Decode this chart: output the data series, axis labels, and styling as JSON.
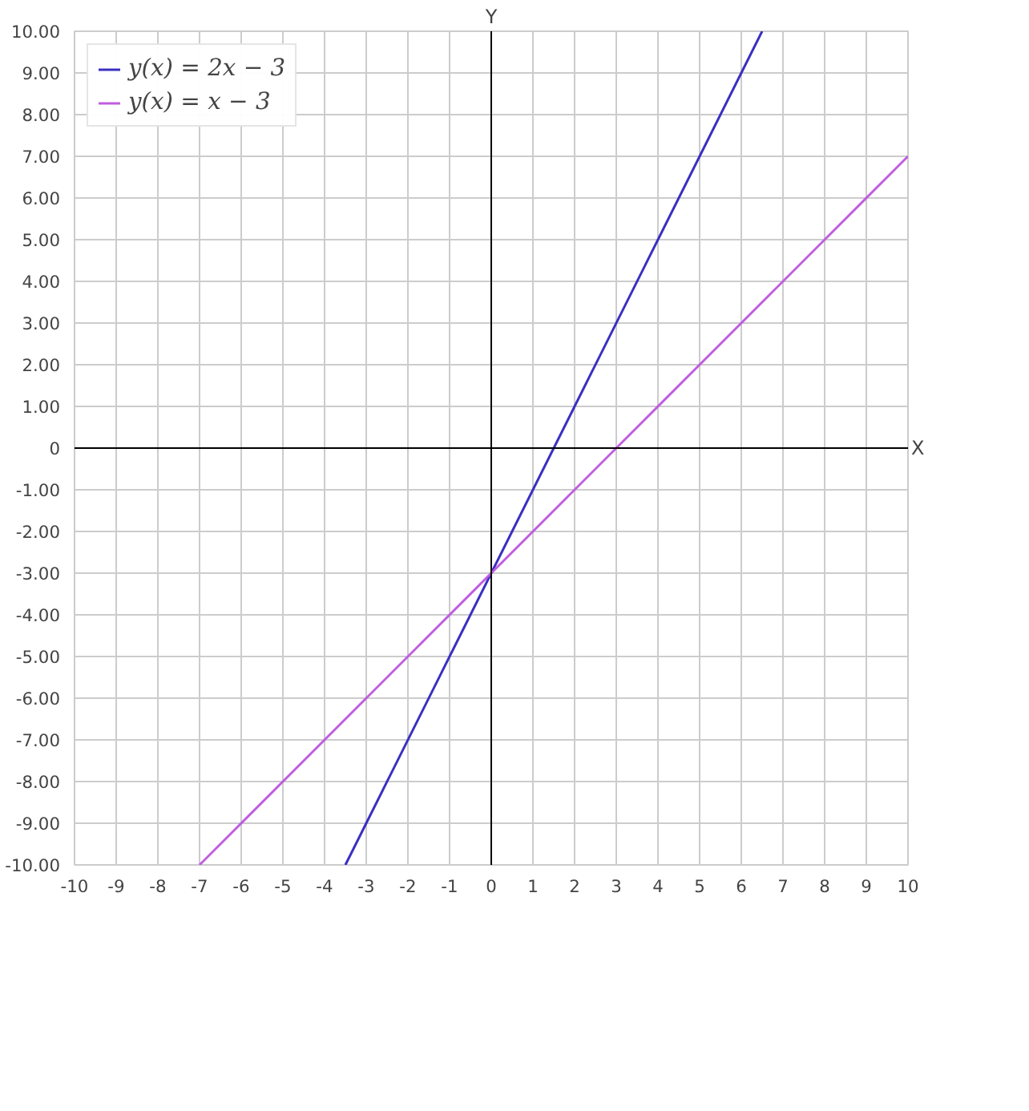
{
  "chart_data": {
    "type": "line",
    "xlabel": "X",
    "ylabel": "Y",
    "xlim": [
      -10,
      10
    ],
    "ylim": [
      -10,
      10
    ],
    "xticks": [
      -10,
      -9,
      -8,
      -7,
      -6,
      -5,
      -4,
      -3,
      -2,
      -1,
      0,
      1,
      2,
      3,
      4,
      5,
      6,
      7,
      8,
      9,
      10
    ],
    "yticks": [
      {
        "value": 10,
        "label": "10.00"
      },
      {
        "value": 9,
        "label": "9.00"
      },
      {
        "value": 8,
        "label": "8.00"
      },
      {
        "value": 7,
        "label": "7.00"
      },
      {
        "value": 6,
        "label": "6.00"
      },
      {
        "value": 5,
        "label": "5.00"
      },
      {
        "value": 4,
        "label": "4.00"
      },
      {
        "value": 3,
        "label": "3.00"
      },
      {
        "value": 2,
        "label": "2.00"
      },
      {
        "value": 1,
        "label": "1.00"
      },
      0,
      {
        "value": -1,
        "label": "-1.00"
      },
      {
        "value": -2,
        "label": "-2.00"
      },
      {
        "value": -3,
        "label": "-3.00"
      },
      {
        "value": -4,
        "label": "-4.00"
      },
      {
        "value": -5,
        "label": "-5.00"
      },
      {
        "value": -6,
        "label": "-6.00"
      },
      {
        "value": -7,
        "label": "-7.00"
      },
      {
        "value": -8,
        "label": "-8.00"
      },
      {
        "value": -9,
        "label": "-9.00"
      },
      {
        "value": -10,
        "label": "-10.00"
      }
    ],
    "grid": true,
    "legend": "top left",
    "marker": "none",
    "line_style": "solid",
    "series": [
      {
        "name": "y(x) = 2x − 3",
        "color": "#3a2fbf",
        "x": [
          -3.5,
          6.5
        ],
        "values": [
          -10,
          10
        ]
      },
      {
        "name": "y(x) = x − 3",
        "color": "#c05ce0",
        "x": [
          -7,
          10
        ],
        "values": [
          -10,
          7
        ]
      }
    ]
  }
}
